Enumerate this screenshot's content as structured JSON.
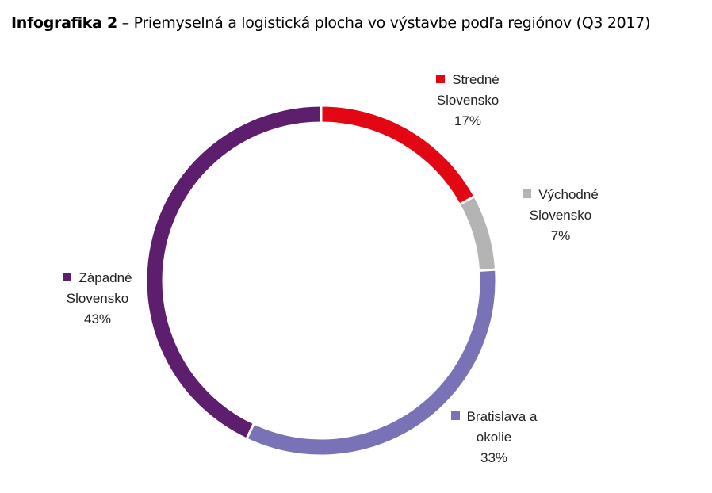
{
  "chart_data": {
    "type": "donut",
    "title_prefix": "Infografika 2",
    "title": "– Priemyselná a logistická plocha vo výstavbe podľa regiónov (Q3 2017)",
    "categories": [
      "Stredné Slovensko",
      "Východné Slovensko",
      "Bratislava a okolie",
      "Západné Slovensko"
    ],
    "values": [
      17,
      7,
      33,
      43
    ],
    "value_labels": [
      "17%",
      "7%",
      "33%",
      "43%"
    ],
    "colors": [
      "#e30613",
      "#b4b4b4",
      "#7a72b6",
      "#5d1e6d"
    ]
  }
}
